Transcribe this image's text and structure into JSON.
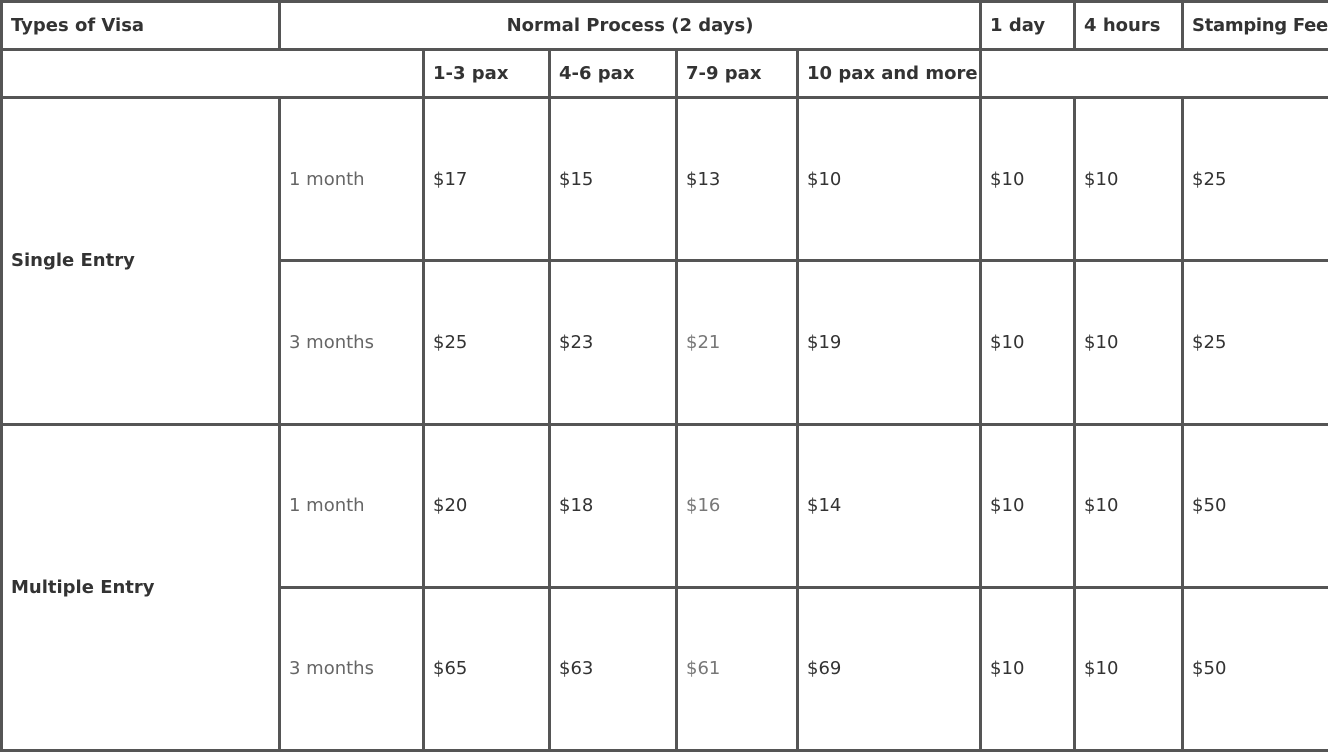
{
  "header": {
    "types_of_visa": "Types of Visa",
    "normal_process": "Normal Process (2 days)",
    "one_day": "1 day",
    "four_hours": "4 hours",
    "stamping_fee": "Stamping Fee"
  },
  "subheader": {
    "pax_1_3": "1-3 pax",
    "pax_4_6": "4-6 pax",
    "pax_7_9": "7-9 pax",
    "pax_10_more": "10 pax and more"
  },
  "groups": [
    {
      "name": "Single Entry",
      "rows": [
        {
          "duration": "1 month",
          "pax_1_3": "$17",
          "pax_4_6": "$15",
          "pax_7_9": "$13",
          "pax_10_more": "$10",
          "one_day": "$10",
          "four_hours": "$10",
          "stamping_fee": "$25"
        },
        {
          "duration": "3 months",
          "pax_1_3": "$25",
          "pax_4_6": "$23",
          "pax_7_9": "$21",
          "pax_10_more": "$19",
          "one_day": "$10",
          "four_hours": "$10",
          "stamping_fee": "$25"
        }
      ]
    },
    {
      "name": "Multiple Entry",
      "rows": [
        {
          "duration": "1 month",
          "pax_1_3": "$20",
          "pax_4_6": "$18",
          "pax_7_9": "$16",
          "pax_10_more": "$14",
          "one_day": "$10",
          "four_hours": "$10",
          "stamping_fee": "$50"
        },
        {
          "duration": "3 months",
          "pax_1_3": "$65",
          "pax_4_6": "$63",
          "pax_7_9": "$61",
          "pax_10_more": "$69",
          "one_day": "$10",
          "four_hours": "$10",
          "stamping_fee": "$50"
        }
      ]
    }
  ],
  "colors": {
    "border": "#555555",
    "text": "#333333",
    "muted_text": "#777777"
  }
}
